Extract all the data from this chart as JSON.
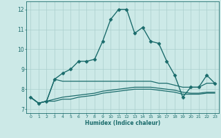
{
  "title": "",
  "xlabel": "Humidex (Indice chaleur)",
  "xlim": [
    -0.5,
    23.5
  ],
  "ylim": [
    6.8,
    12.4
  ],
  "xticks": [
    0,
    1,
    2,
    3,
    4,
    5,
    6,
    7,
    8,
    9,
    10,
    11,
    12,
    13,
    14,
    15,
    16,
    17,
    18,
    19,
    20,
    21,
    22,
    23
  ],
  "yticks": [
    7,
    8,
    9,
    10,
    11,
    12
  ],
  "background_color": "#cce9e7",
  "grid_color": "#aacfcd",
  "line_color": "#1a6b6b",
  "curves": [
    {
      "x": [
        0,
        1,
        2,
        3,
        4,
        5,
        6,
        7,
        8,
        9,
        10,
        11,
        12,
        13,
        14,
        15,
        16,
        17,
        18,
        19,
        20,
        21,
        22,
        23
      ],
      "y": [
        7.6,
        7.3,
        7.4,
        8.5,
        8.8,
        9.0,
        9.4,
        9.4,
        9.5,
        10.4,
        11.5,
        12.0,
        12.0,
        10.8,
        11.1,
        10.4,
        10.3,
        9.4,
        8.7,
        7.6,
        8.1,
        8.1,
        8.7,
        8.3
      ],
      "marker": "D",
      "markersize": 2.5,
      "linewidth": 1.0,
      "linestyle": "-"
    },
    {
      "x": [
        0,
        1,
        2,
        3,
        4,
        5,
        6,
        7,
        8,
        9,
        10,
        11,
        12,
        13,
        14,
        15,
        16,
        17,
        18,
        19,
        20,
        21,
        22,
        23
      ],
      "y": [
        7.6,
        7.3,
        7.4,
        8.5,
        8.4,
        8.4,
        8.4,
        8.4,
        8.4,
        8.4,
        8.4,
        8.4,
        8.4,
        8.4,
        8.4,
        8.4,
        8.3,
        8.3,
        8.2,
        8.1,
        8.1,
        8.1,
        8.3,
        8.3
      ],
      "marker": null,
      "markersize": 0,
      "linewidth": 0.9,
      "linestyle": "-"
    },
    {
      "x": [
        0,
        1,
        2,
        3,
        4,
        5,
        6,
        7,
        8,
        9,
        10,
        11,
        12,
        13,
        14,
        15,
        16,
        17,
        18,
        19,
        20,
        21,
        22,
        23
      ],
      "y": [
        7.6,
        7.3,
        7.4,
        7.5,
        7.6,
        7.65,
        7.7,
        7.75,
        7.8,
        7.9,
        7.95,
        8.0,
        8.05,
        8.1,
        8.1,
        8.1,
        8.05,
        8.0,
        7.95,
        7.85,
        7.8,
        7.8,
        7.85,
        7.85
      ],
      "marker": null,
      "markersize": 0,
      "linewidth": 0.9,
      "linestyle": "-"
    },
    {
      "x": [
        0,
        1,
        2,
        3,
        4,
        5,
        6,
        7,
        8,
        9,
        10,
        11,
        12,
        13,
        14,
        15,
        16,
        17,
        18,
        19,
        20,
        21,
        22,
        23
      ],
      "y": [
        7.6,
        7.3,
        7.4,
        7.4,
        7.5,
        7.5,
        7.6,
        7.65,
        7.7,
        7.8,
        7.85,
        7.9,
        7.95,
        8.0,
        8.0,
        8.0,
        7.95,
        7.9,
        7.85,
        7.75,
        7.75,
        7.75,
        7.8,
        7.8
      ],
      "marker": null,
      "markersize": 0,
      "linewidth": 0.9,
      "linestyle": "-"
    }
  ]
}
